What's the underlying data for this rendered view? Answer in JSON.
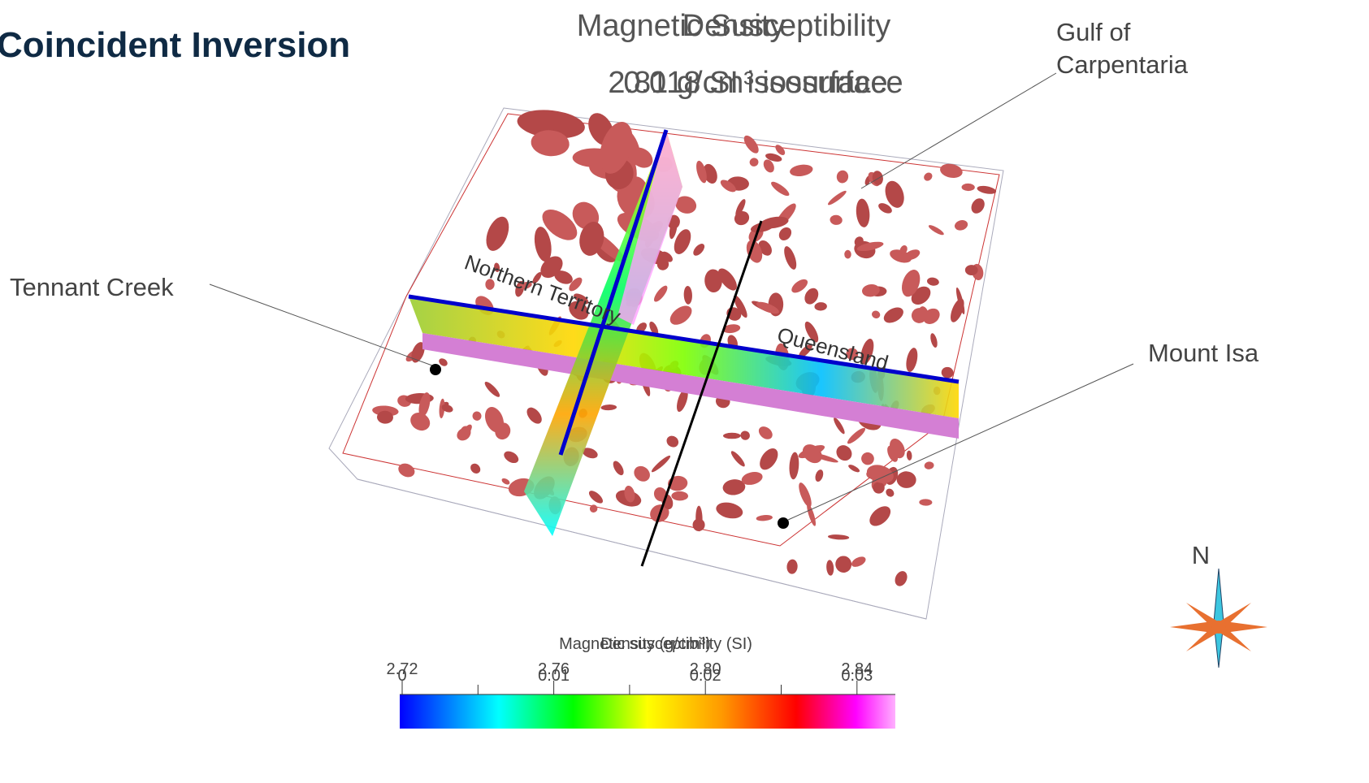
{
  "header": {
    "title": "Coincident Inversion"
  },
  "plot": {
    "titles": [
      {
        "line1": "Magnetic Susceptibility",
        "line2": "0.018 SI isosurface"
      },
      {
        "line1": "Density",
        "line2": "2.81 g/cm³ isosurface"
      }
    ],
    "region_labels": [
      "Northern Territory",
      "Queensland"
    ],
    "annotations": [
      "Gulf of Carpentaria",
      "Tennant Creek",
      "Mount Isa"
    ],
    "north": "N"
  },
  "colorbar": {
    "titles": [
      "Density (g/cm³)",
      "Magnetic susceptibility (SI)"
    ],
    "density_ticks": [
      "2.72",
      "2.76",
      "2.80",
      "2.84"
    ],
    "susceptibility_ticks": [
      "0",
      "0.01",
      "0.02",
      "0.03"
    ]
  }
}
